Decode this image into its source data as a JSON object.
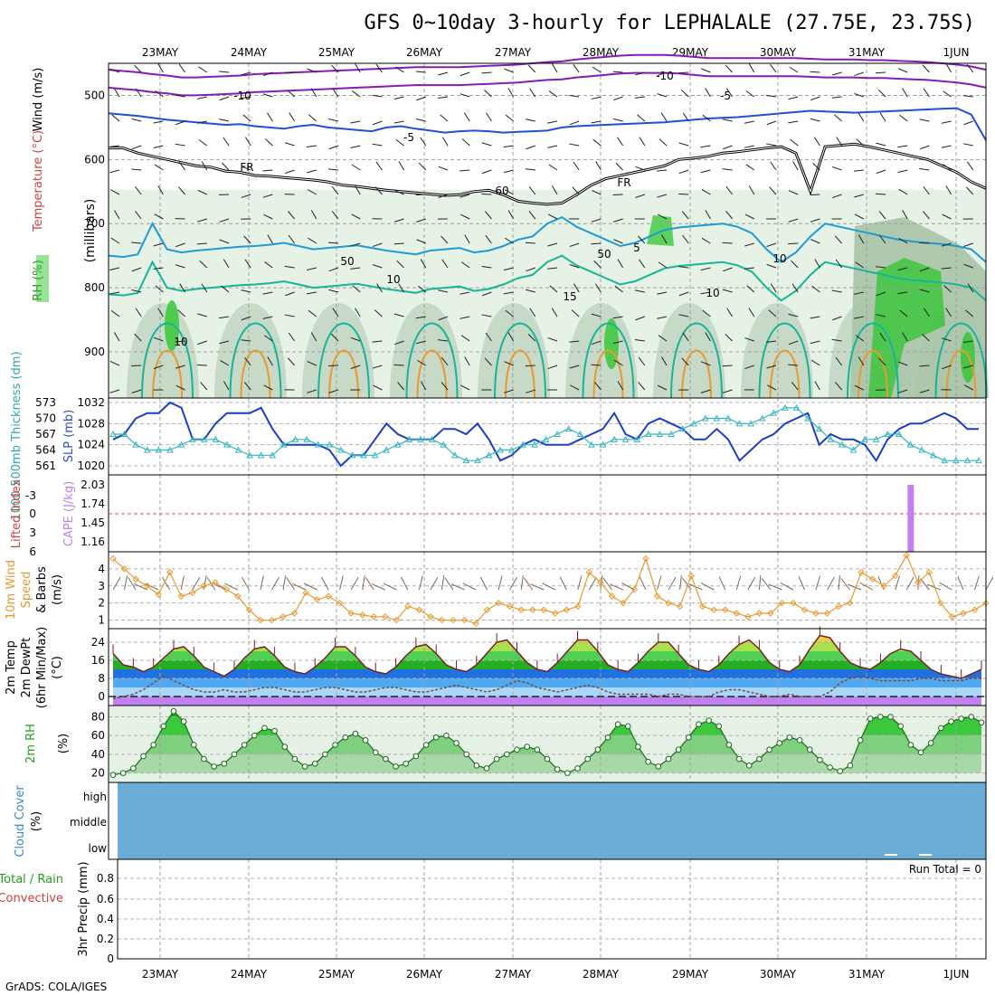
{
  "title": "GFS 0~10day 3-hourly for LEPHALALE (27.75E, 23.75S)",
  "credit": "GrADS: COLA/IGES",
  "dates": [
    "23MAY",
    "24MAY",
    "25MAY",
    "26MAY",
    "27MAY",
    "28MAY",
    "29MAY",
    "30MAY",
    "31MAY",
    "1JUN"
  ],
  "colors": {
    "purple": "#8a18b8",
    "blue": "#1f4fd6",
    "cyan": "#1e9ad6",
    "teal": "#18b49a",
    "orange": "#e89a30",
    "slp": "#1a3fc4",
    "thickness": "#33b8c0",
    "cape": "#c080f0",
    "li": "#e05050",
    "rh_green": "#2fc62f",
    "cloud": "#6aaed8"
  },
  "chart_data": [
    {
      "type": "area",
      "panel": "upper-air",
      "ylabel": "(millibars)",
      "side_label": "RH (%) Temperature (°C) Wind (m/s)",
      "side_parts": [
        "RH (%)",
        "Temperature (°C)",
        "Wind (m/s)"
      ],
      "y_ticks": [
        500,
        600,
        700,
        800,
        900
      ],
      "ylim": [
        1000,
        450
      ],
      "contour_labels": [
        "-10",
        "-10",
        "-5",
        "-5",
        "FR",
        "FR",
        "10",
        "10",
        "5",
        "10",
        "15",
        "60",
        "50",
        "50",
        "10"
      ],
      "freezing_level_mb": [
        582,
        582,
        590,
        595,
        600,
        605,
        610,
        612,
        618,
        620,
        625,
        626,
        628,
        630,
        632,
        635,
        640,
        642,
        645,
        648,
        650,
        652,
        654,
        656,
        655,
        650,
        648,
        655,
        665,
        668,
        670,
        668,
        655,
        640,
        630,
        625,
        620,
        615,
        610,
        600,
        598,
        595,
        590,
        588,
        585,
        582,
        580,
        590,
        650,
        580,
        578,
        576,
        580,
        585,
        590,
        595,
        600,
        610,
        620,
        635,
        645
      ],
      "minus5_mb": [
        528,
        530,
        532,
        535,
        538,
        540,
        542,
        544,
        546,
        545,
        548,
        550,
        552,
        548,
        546,
        550,
        552,
        554,
        556,
        550,
        548,
        552,
        555,
        558,
        556,
        555,
        556,
        558,
        557,
        556,
        555,
        550,
        548,
        547,
        546,
        545,
        544,
        543,
        542,
        540,
        538,
        536,
        535,
        534,
        532,
        530,
        528,
        526,
        524,
        525,
        526,
        527,
        526,
        525,
        524,
        523,
        522,
        521,
        520,
        530,
        570
      ],
      "minus10_mb": [
        488,
        490,
        492,
        495,
        497,
        500,
        500,
        499,
        498,
        497,
        495,
        494,
        493,
        492,
        491,
        490,
        489,
        488,
        487,
        486,
        485,
        484,
        484,
        484,
        484,
        483,
        482,
        481,
        480,
        478,
        476,
        475,
        472,
        470,
        468,
        466,
        465,
        465,
        465,
        466,
        468,
        470,
        470,
        470,
        470,
        470,
        470,
        470,
        471,
        472,
        472,
        472,
        473,
        473,
        474,
        475,
        476,
        478,
        480,
        483,
        488
      ],
      "plus5_mb": [
        750,
        752,
        748,
        700,
        740,
        745,
        742,
        740,
        738,
        736,
        735,
        733,
        730,
        735,
        740,
        738,
        736,
        734,
        738,
        742,
        745,
        748,
        742,
        740,
        738,
        745,
        742,
        735,
        725,
        720,
        700,
        690,
        705,
        715,
        725,
        735,
        730,
        720,
        710,
        706,
        704,
        702,
        700,
        705,
        715,
        740,
        760,
        745,
        720,
        700,
        705,
        710,
        715,
        720,
        725,
        728,
        730,
        732,
        735,
        740,
        760
      ]
    },
    {
      "type": "line",
      "panel": "slp-thickness",
      "ylabel_left": "1000-500mb Thickness (dm)",
      "ylabel_right": "SLP (mb)",
      "left_ticks": [
        561,
        564,
        567,
        570,
        573
      ],
      "right_ticks": [
        1020,
        1024,
        1028,
        1032
      ],
      "series": [
        {
          "name": "SLP (mb)",
          "values": [
            1025,
            1026,
            1029,
            1030,
            1030,
            1032,
            1031,
            1025,
            1025,
            1028,
            1030,
            1030,
            1030,
            1031,
            1027,
            1024,
            1024,
            1024,
            1024,
            1023,
            1020,
            1022,
            1022,
            1025,
            1028,
            1026,
            1025,
            1025,
            1025,
            1027,
            1027,
            1026,
            1028,
            1025,
            1021,
            1022,
            1024,
            1025,
            1024,
            1024,
            1024,
            1025,
            1026,
            1027,
            1030,
            1026,
            1025,
            1028,
            1029,
            1028,
            1027,
            1025,
            1025,
            1027,
            1025,
            1021,
            1023,
            1025,
            1026,
            1028,
            1029,
            1030,
            1024,
            1026,
            1025,
            1025,
            1024,
            1021,
            1025,
            1027,
            1028,
            1028,
            1029,
            1030,
            1029,
            1027,
            1027
          ]
        },
        {
          "name": "Thickness (dm)",
          "values": [
            567,
            567,
            565,
            564,
            564,
            564,
            565,
            566,
            566,
            566,
            565,
            564,
            563,
            563,
            563,
            565,
            566,
            566,
            565,
            565,
            564,
            563,
            563,
            563,
            564,
            565,
            566,
            566,
            566,
            565,
            563,
            562,
            562,
            563,
            564,
            564,
            565,
            565,
            566,
            567,
            568,
            567,
            565,
            565,
            566,
            566,
            566,
            567,
            567,
            567,
            568,
            569,
            570,
            570,
            570,
            569,
            569,
            570,
            571,
            572,
            572,
            570,
            568,
            566,
            565,
            564,
            566,
            566,
            567,
            567,
            565,
            564,
            563,
            562,
            562,
            562,
            562
          ]
        }
      ]
    },
    {
      "type": "bar",
      "panel": "cape-li",
      "ylabel_left": "Lifted Index",
      "ylabel_right": "CAPE (J/kg)",
      "li_ticks": [
        "-3",
        "0",
        "3",
        "6"
      ],
      "cape_ticks": [
        "2.03",
        "1.74",
        "1.45",
        "1.16"
      ],
      "cape_bar_day": 8.48,
      "cape_value": 2.03,
      "li_zero_line": 0
    },
    {
      "type": "line",
      "panel": "wind10m",
      "ylabel": "10m Wind Speed & Barbs (m/s)",
      "ylabel_parts": [
        "10m Wind",
        "Speed",
        "& Barbs",
        "(m/s)"
      ],
      "y_ticks": [
        1,
        2,
        3,
        4
      ],
      "ylim": [
        0.5,
        5
      ],
      "series": [
        {
          "name": "10m Wind Speed",
          "values": [
            4.6,
            4.0,
            3.4,
            3.0,
            2.5,
            3.8,
            2.4,
            2.6,
            3.0,
            3.2,
            2.8,
            2.4,
            1.6,
            1.0,
            1.0,
            1.2,
            1.4,
            2.6,
            2.2,
            2.4,
            2.0,
            1.4,
            1.3,
            1.2,
            1.2,
            1.0,
            1.8,
            1.6,
            1.2,
            1.0,
            1.0,
            1.0,
            0.8,
            1.6,
            2.0,
            1.8,
            1.6,
            1.6,
            1.6,
            1.4,
            1.6,
            1.8,
            3.8,
            3.2,
            2.4,
            2.0,
            2.8,
            4.6,
            2.4,
            2.0,
            1.8,
            3.6,
            1.8,
            1.6,
            1.6,
            1.4,
            1.2,
            1.4,
            1.4,
            2.0,
            2.0,
            1.6,
            1.4,
            1.4,
            1.8,
            2.0,
            3.8,
            3.4,
            3.0,
            3.6,
            4.8,
            3.2,
            3.8,
            2.0,
            1.2,
            1.4,
            1.6,
            2.0
          ]
        }
      ]
    },
    {
      "type": "area",
      "panel": "temperature",
      "ylabel": "2m Temp 2m DewPt (6hr Min/Max) (°C)",
      "ylabel_parts": [
        "2m Temp",
        "2m DewPt",
        "(6hr Min/Max)",
        "(°C)"
      ],
      "y_ticks": [
        0,
        8,
        16,
        24
      ],
      "ylim": [
        -4,
        30
      ],
      "series": [
        {
          "name": "2m Temp",
          "values": [
            19,
            14,
            13,
            11,
            13,
            17,
            21,
            22,
            18,
            13,
            11,
            9,
            12,
            17,
            21,
            22,
            18,
            13,
            11,
            10,
            13,
            17,
            22,
            22,
            18,
            13,
            11,
            10,
            13,
            18,
            22,
            23,
            19,
            14,
            12,
            11,
            14,
            19,
            24,
            25,
            20,
            15,
            12,
            11,
            15,
            20,
            25,
            25,
            20,
            14,
            12,
            11,
            15,
            20,
            24,
            24,
            19,
            14,
            12,
            11,
            14,
            19,
            23,
            25,
            21,
            15,
            12,
            11,
            14,
            21,
            27,
            26,
            20,
            15,
            13,
            12,
            15,
            19,
            21,
            20,
            16,
            12,
            10,
            9,
            8,
            10,
            12
          ]
        },
        {
          "name": "2m DewPt",
          "values": [
            -1,
            0,
            1,
            3,
            6,
            9,
            7,
            5,
            3,
            2,
            2,
            3,
            2,
            2,
            3,
            4,
            4,
            3,
            2,
            2,
            3,
            4,
            4,
            3,
            2,
            2,
            3,
            4,
            4,
            3,
            2,
            2,
            3,
            4,
            5,
            4,
            3,
            2,
            3,
            5,
            7,
            6,
            4,
            3,
            2,
            3,
            4,
            5,
            4,
            2,
            1,
            1,
            1,
            1,
            0,
            1,
            1,
            0,
            0,
            0,
            2,
            3,
            3,
            2,
            1,
            0,
            0,
            1,
            0,
            0,
            0,
            2,
            6,
            8,
            9,
            8,
            7,
            7,
            7,
            7,
            8,
            8,
            7,
            7,
            7,
            8,
            8
          ]
        }
      ]
    },
    {
      "type": "area",
      "panel": "rh2m",
      "ylabel": "2m RH (%)",
      "ylabel_parts": [
        "2m RH",
        "(%)"
      ],
      "y_ticks": [
        20,
        40,
        60,
        80
      ],
      "ylim": [
        10,
        92
      ],
      "series": [
        {
          "name": "2m RH",
          "values": [
            18,
            20,
            25,
            38,
            50,
            70,
            86,
            75,
            50,
            35,
            27,
            30,
            40,
            50,
            60,
            68,
            65,
            48,
            35,
            27,
            30,
            40,
            50,
            58,
            62,
            55,
            42,
            35,
            27,
            30,
            38,
            50,
            58,
            60,
            52,
            40,
            28,
            25,
            35,
            40,
            45,
            48,
            45,
            35,
            24,
            20,
            25,
            35,
            45,
            58,
            72,
            70,
            48,
            32,
            27,
            35,
            45,
            58,
            72,
            76,
            70,
            50,
            35,
            28,
            35,
            45,
            52,
            58,
            55,
            45,
            34,
            26,
            22,
            28,
            55,
            78,
            80,
            80,
            70,
            50,
            42,
            52,
            68,
            75,
            78,
            80,
            74
          ]
        }
      ]
    },
    {
      "type": "heatmap",
      "panel": "cloud",
      "ylabel": "Cloud Cover (%)",
      "ylabel_parts": [
        "Cloud Cover",
        "(%)"
      ],
      "y_ticks": [
        "high",
        "middle",
        "low"
      ]
    },
    {
      "type": "bar",
      "panel": "precip",
      "ylabel": "3hr Precip (mm)",
      "side_label": [
        "Total / Rain",
        "Convective"
      ],
      "y_ticks": [
        "0",
        "0.2",
        "0.4",
        "0.6",
        "0.8"
      ],
      "ylim": [
        0,
        1
      ],
      "annotation": "Run Total = 0"
    }
  ]
}
